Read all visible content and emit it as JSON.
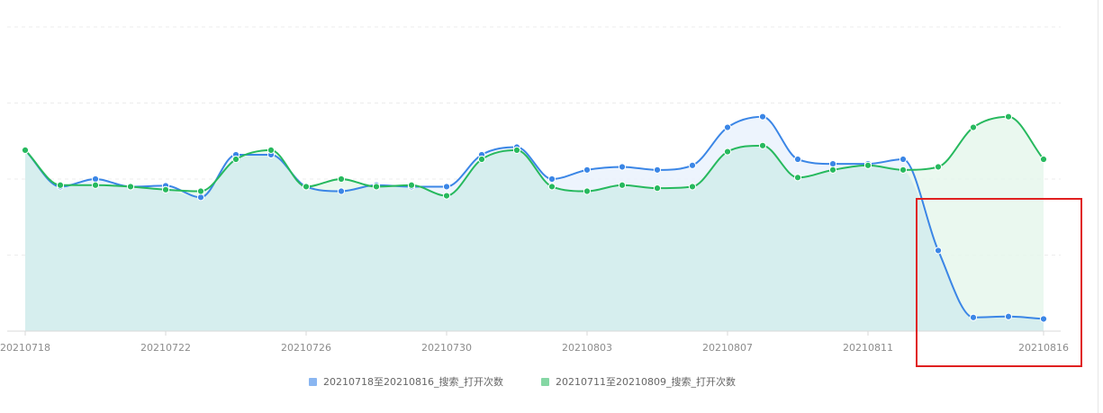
{
  "chart_data": {
    "type": "area",
    "x": [
      "20210718",
      "20210719",
      "20210720",
      "20210721",
      "20210722",
      "20210723",
      "20210724",
      "20210725",
      "20210726",
      "20210727",
      "20210728",
      "20210729",
      "20210730",
      "20210731",
      "20210801",
      "20210802",
      "20210803",
      "20210804",
      "20210805",
      "20210806",
      "20210807",
      "20210808",
      "20210809",
      "20210810",
      "20210811",
      "20210812",
      "20210813",
      "20210814",
      "20210815",
      "20210816"
    ],
    "tick_labels": [
      "20210718",
      "20210722",
      "20210726",
      "20210730",
      "20210803",
      "20210807",
      "20210811",
      "20210816"
    ],
    "ylim": [
      0,
      100
    ],
    "grid": true,
    "series": [
      {
        "name": "20210718至20210816_搜索_打开次数",
        "color": "#3b86e6",
        "fill": "#eaf2fd",
        "values": [
          59.5,
          47.5,
          50.0,
          47.5,
          47.8,
          44.0,
          58.0,
          58.0,
          47.5,
          46.0,
          48.0,
          47.5,
          47.5,
          58.0,
          60.5,
          50.0,
          53.0,
          54.0,
          53.0,
          54.5,
          67.0,
          70.5,
          56.5,
          55.0,
          55.0,
          56.5,
          26.5,
          4.5,
          4.8,
          4.0
        ]
      },
      {
        "name": "20210711至20210809_搜索_打开次数",
        "color": "#27b95e",
        "fill": "#e6f7ec",
        "values": [
          59.5,
          48.0,
          48.0,
          47.5,
          46.5,
          46.0,
          56.5,
          59.5,
          47.5,
          50.0,
          47.5,
          48.0,
          44.5,
          56.5,
          59.5,
          47.5,
          46.0,
          48.0,
          47.0,
          47.5,
          59.0,
          61.0,
          50.5,
          53.0,
          54.5,
          53.0,
          54.0,
          67.0,
          70.5,
          56.5
        ]
      }
    ]
  },
  "annotation": {
    "color": "#e02020"
  }
}
